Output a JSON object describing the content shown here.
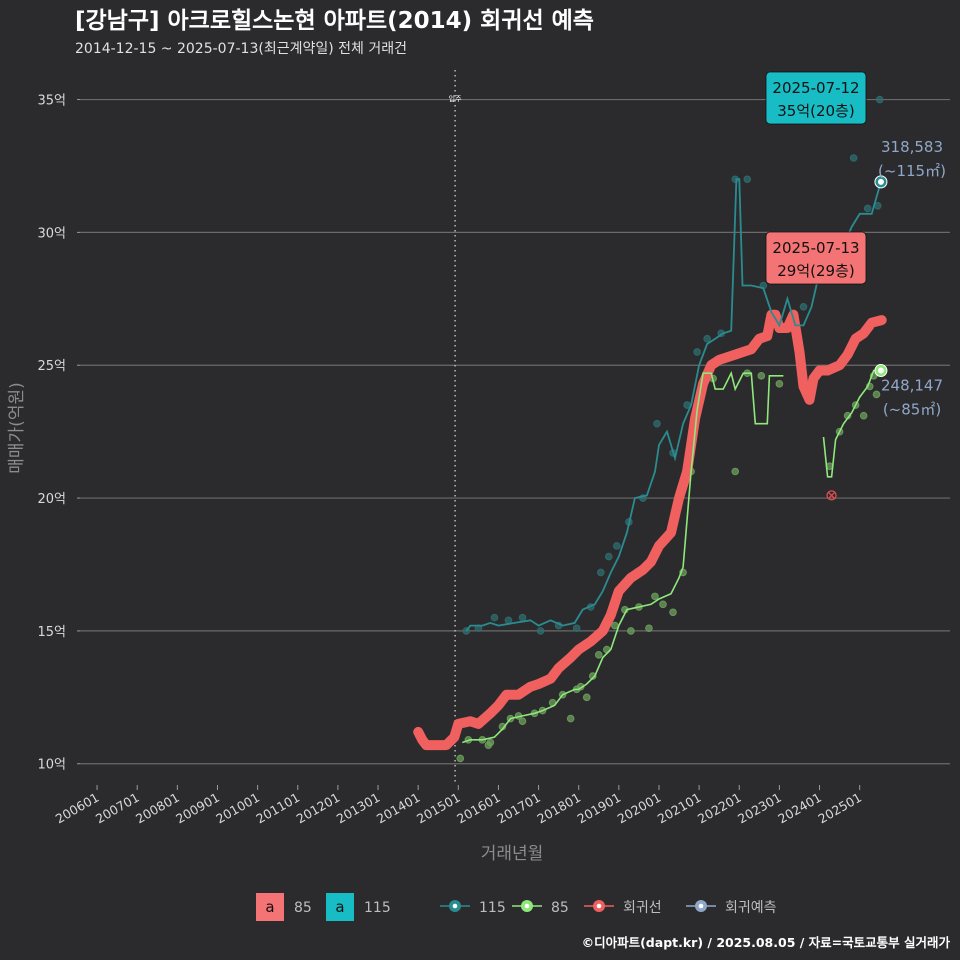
{
  "chart_data": {
    "type": "line",
    "title": "[강남구] 아크로힐스논현 아파트(2014) 회귀선 예측",
    "subtitle": "2014-12-15 ~ 2025-07-13(최근계약일) 전체 거래건",
    "xlabel": "거래년월",
    "ylabel": "매매가(억원)",
    "caption": "©디아파트(dapt.kr) / 2025.08.05 / 자료=국토교통부 실거래가",
    "y_ticks": [
      {
        "v": 10,
        "label": "10억"
      },
      {
        "v": 15,
        "label": "15억"
      },
      {
        "v": 20,
        "label": "20억"
      },
      {
        "v": 25,
        "label": "25억"
      },
      {
        "v": 30,
        "label": "30억"
      },
      {
        "v": 35,
        "label": "35억"
      }
    ],
    "x_ticks": [
      {
        "v": 2006.0,
        "label": "200601"
      },
      {
        "v": 2007.0,
        "label": "200701"
      },
      {
        "v": 2008.0,
        "label": "200801"
      },
      {
        "v": 2009.0,
        "label": "200901"
      },
      {
        "v": 2010.0,
        "label": "201001"
      },
      {
        "v": 2011.0,
        "label": "201101"
      },
      {
        "v": 2012.0,
        "label": "201201"
      },
      {
        "v": 2013.0,
        "label": "201301"
      },
      {
        "v": 2014.0,
        "label": "201401"
      },
      {
        "v": 2015.0,
        "label": "201501"
      },
      {
        "v": 2016.0,
        "label": "201601"
      },
      {
        "v": 2017.0,
        "label": "201701"
      },
      {
        "v": 2018.0,
        "label": "201801"
      },
      {
        "v": 2019.0,
        "label": "201901"
      },
      {
        "v": 2020.0,
        "label": "202001"
      },
      {
        "v": 2021.0,
        "label": "202101"
      },
      {
        "v": 2022.0,
        "label": "202201"
      },
      {
        "v": 2023.0,
        "label": "202301"
      },
      {
        "v": 2024.0,
        "label": "202401"
      },
      {
        "v": 2025.0,
        "label": "202501"
      }
    ],
    "xlim": [
      2005.45,
      2027.5
    ],
    "ylim": [
      9.2,
      36.3
    ],
    "grid": true,
    "move_in_line": {
      "x": 2014.92,
      "label": "입주"
    },
    "colors": {
      "s115": "#2a8c90",
      "s85": "#8fe87a",
      "regression": "#f0605f",
      "prediction": "#8fa7c9",
      "annot115": "#18bcc4",
      "annot85": "#f47374",
      "grid": "#6a6a6a"
    },
    "series": [
      {
        "name": "115",
        "color": "#2a8c90",
        "points": [
          [
            2015.2,
            15.0
          ],
          [
            2015.3,
            15.2
          ],
          [
            2015.6,
            15.2
          ],
          [
            2015.8,
            15.3
          ],
          [
            2016.0,
            15.2
          ],
          [
            2016.4,
            15.3
          ],
          [
            2016.8,
            15.4
          ],
          [
            2017.0,
            15.2
          ],
          [
            2017.3,
            15.4
          ],
          [
            2017.6,
            15.2
          ],
          [
            2017.9,
            15.3
          ],
          [
            2018.1,
            15.8
          ],
          [
            2018.4,
            16.0
          ],
          [
            2018.6,
            16.5
          ],
          [
            2018.8,
            17.2
          ],
          [
            2019.0,
            17.8
          ],
          [
            2019.2,
            18.7
          ],
          [
            2019.4,
            20.0
          ],
          [
            2019.7,
            20.1
          ],
          [
            2019.9,
            21.0
          ],
          [
            2020.0,
            22.0
          ],
          [
            2020.2,
            22.5
          ],
          [
            2020.4,
            21.5
          ],
          [
            2020.6,
            22.8
          ],
          [
            2020.8,
            23.5
          ],
          [
            2021.0,
            25.0
          ],
          [
            2021.2,
            25.8
          ],
          [
            2021.4,
            26.0
          ],
          [
            2021.6,
            26.2
          ],
          [
            2021.8,
            26.3
          ],
          [
            2021.93,
            32.0
          ],
          [
            2022.0,
            32.0
          ],
          [
            2022.08,
            28.0
          ],
          [
            2022.3,
            28.0
          ],
          [
            2022.6,
            27.9
          ],
          [
            2022.8,
            27.0
          ],
          [
            2023.0,
            26.5
          ],
          [
            2023.2,
            27.5
          ],
          [
            2023.4,
            26.5
          ],
          [
            2023.6,
            26.5
          ],
          [
            2023.8,
            27.2
          ],
          [
            2024.0,
            28.5
          ],
          [
            2024.2,
            29.5
          ],
          [
            2024.4,
            29.0
          ],
          [
            2024.6,
            29.5
          ],
          [
            2024.8,
            30.2
          ],
          [
            2025.0,
            30.7
          ],
          [
            2025.3,
            30.7
          ],
          [
            2025.53,
            31.9
          ]
        ]
      },
      {
        "name": "85",
        "color": "#8fe87a",
        "segments": [
          [
            [
              2015.1,
              10.8
            ],
            [
              2015.3,
              10.9
            ],
            [
              2015.6,
              10.9
            ],
            [
              2015.9,
              11.0
            ],
            [
              2016.1,
              11.3
            ],
            [
              2016.3,
              11.7
            ],
            [
              2016.6,
              11.8
            ],
            [
              2016.9,
              11.9
            ],
            [
              2017.1,
              12.0
            ],
            [
              2017.4,
              12.2
            ],
            [
              2017.6,
              12.6
            ],
            [
              2017.9,
              12.8
            ],
            [
              2018.0,
              12.8
            ],
            [
              2018.2,
              13.0
            ],
            [
              2018.4,
              13.3
            ],
            [
              2018.6,
              14.0
            ],
            [
              2018.8,
              14.3
            ],
            [
              2019.0,
              15.2
            ],
            [
              2019.2,
              15.8
            ],
            [
              2019.5,
              15.9
            ],
            [
              2019.8,
              16.0
            ],
            [
              2020.0,
              16.2
            ],
            [
              2020.3,
              16.4
            ],
            [
              2020.5,
              17.0
            ],
            [
              2020.6,
              17.4
            ],
            [
              2020.8,
              21.0
            ],
            [
              2020.95,
              23.3
            ],
            [
              2021.1,
              24.7
            ],
            [
              2021.3,
              24.7
            ],
            [
              2021.4,
              24.1
            ],
            [
              2021.6,
              24.1
            ],
            [
              2021.8,
              24.7
            ],
            [
              2021.9,
              24.1
            ],
            [
              2022.1,
              24.7
            ],
            [
              2022.3,
              24.7
            ],
            [
              2022.4,
              22.8
            ],
            [
              2022.7,
              22.8
            ],
            [
              2022.75,
              24.6
            ],
            [
              2023.0,
              24.6
            ],
            [
              2023.1,
              24.6
            ]
          ],
          [
            [
              2024.1,
              22.3
            ],
            [
              2024.2,
              20.8
            ],
            [
              2024.3,
              20.8
            ],
            [
              2024.4,
              22.2
            ],
            [
              2024.6,
              22.8
            ],
            [
              2024.8,
              23.2
            ],
            [
              2025.0,
              23.8
            ],
            [
              2025.2,
              24.2
            ],
            [
              2025.35,
              24.8
            ],
            [
              2025.53,
              24.8
            ]
          ]
        ]
      },
      {
        "name": "회귀선",
        "color": "#f0605f",
        "points": [
          [
            2014.0,
            11.2
          ],
          [
            2014.1,
            10.9
          ],
          [
            2014.2,
            10.7
          ],
          [
            2014.45,
            10.7
          ],
          [
            2014.7,
            10.7
          ],
          [
            2014.9,
            11.0
          ],
          [
            2015.0,
            11.5
          ],
          [
            2015.3,
            11.6
          ],
          [
            2015.5,
            11.5
          ],
          [
            2015.8,
            11.9
          ],
          [
            2016.0,
            12.2
          ],
          [
            2016.2,
            12.6
          ],
          [
            2016.5,
            12.6
          ],
          [
            2016.8,
            12.9
          ],
          [
            2017.0,
            13.0
          ],
          [
            2017.3,
            13.2
          ],
          [
            2017.5,
            13.6
          ],
          [
            2017.8,
            14.0
          ],
          [
            2018.0,
            14.3
          ],
          [
            2018.3,
            14.6
          ],
          [
            2018.6,
            15.0
          ],
          [
            2018.8,
            15.6
          ],
          [
            2019.0,
            16.5
          ],
          [
            2019.3,
            17.0
          ],
          [
            2019.6,
            17.3
          ],
          [
            2019.8,
            17.6
          ],
          [
            2020.0,
            18.2
          ],
          [
            2020.3,
            18.7
          ],
          [
            2020.5,
            20.0
          ],
          [
            2020.7,
            21.0
          ],
          [
            2020.9,
            23.0
          ],
          [
            2021.1,
            24.3
          ],
          [
            2021.3,
            25.0
          ],
          [
            2021.5,
            25.2
          ],
          [
            2021.7,
            25.3
          ],
          [
            2021.9,
            25.4
          ],
          [
            2022.1,
            25.5
          ],
          [
            2022.3,
            25.6
          ],
          [
            2022.5,
            26.0
          ],
          [
            2022.7,
            26.1
          ],
          [
            2022.8,
            26.9
          ],
          [
            2022.9,
            26.9
          ],
          [
            2023.0,
            26.4
          ],
          [
            2023.2,
            26.4
          ],
          [
            2023.35,
            26.9
          ],
          [
            2023.5,
            25.5
          ],
          [
            2023.6,
            24.2
          ],
          [
            2023.75,
            23.7
          ],
          [
            2023.85,
            24.5
          ],
          [
            2024.0,
            24.8
          ],
          [
            2024.2,
            24.8
          ],
          [
            2024.5,
            25.0
          ],
          [
            2024.7,
            25.4
          ],
          [
            2024.9,
            26.0
          ],
          [
            2025.1,
            26.2
          ],
          [
            2025.3,
            26.6
          ],
          [
            2025.55,
            26.7
          ]
        ]
      }
    ],
    "scatter": {
      "color85": "#6e9f5c",
      "color115": "#2f6d6f",
      "points": [
        [
          2015.05,
          10.2,
          "85"
        ],
        [
          2015.25,
          10.9,
          "85"
        ],
        [
          2015.6,
          10.9,
          "85"
        ],
        [
          2015.75,
          10.7,
          "85"
        ],
        [
          2015.8,
          10.8,
          "85"
        ],
        [
          2016.1,
          11.4,
          "85"
        ],
        [
          2016.3,
          11.7,
          "85"
        ],
        [
          2016.5,
          11.8,
          "85"
        ],
        [
          2016.6,
          11.6,
          "85"
        ],
        [
          2016.9,
          11.9,
          "85"
        ],
        [
          2017.1,
          12.0,
          "85"
        ],
        [
          2017.35,
          12.3,
          "85"
        ],
        [
          2017.6,
          12.6,
          "85"
        ],
        [
          2017.8,
          11.7,
          "85"
        ],
        [
          2017.95,
          12.8,
          "85"
        ],
        [
          2018.05,
          12.9,
          "85"
        ],
        [
          2018.2,
          12.5,
          "85"
        ],
        [
          2018.35,
          13.3,
          "85"
        ],
        [
          2018.5,
          14.1,
          "85"
        ],
        [
          2018.7,
          14.3,
          "85"
        ],
        [
          2018.9,
          15.2,
          "85"
        ],
        [
          2019.15,
          15.8,
          "85"
        ],
        [
          2019.3,
          15.0,
          "85"
        ],
        [
          2019.5,
          15.9,
          "85"
        ],
        [
          2019.75,
          15.1,
          "85"
        ],
        [
          2019.9,
          16.3,
          "85"
        ],
        [
          2020.1,
          16.0,
          "85"
        ],
        [
          2020.35,
          15.7,
          "85"
        ],
        [
          2020.6,
          17.2,
          "85"
        ],
        [
          2020.8,
          21.0,
          "85"
        ],
        [
          2021.35,
          24.5,
          "85"
        ],
        [
          2021.9,
          21.0,
          "85"
        ],
        [
          2022.2,
          24.7,
          "85"
        ],
        [
          2022.55,
          24.6,
          "85"
        ],
        [
          2023.0,
          24.3,
          "85"
        ],
        [
          2024.25,
          21.2,
          "85"
        ],
        [
          2024.5,
          22.5,
          "85"
        ],
        [
          2024.7,
          23.1,
          "85"
        ],
        [
          2024.9,
          23.5,
          "85"
        ],
        [
          2025.1,
          23.1,
          "85"
        ],
        [
          2025.25,
          24.2,
          "85"
        ],
        [
          2025.35,
          24.6,
          "85"
        ],
        [
          2025.42,
          23.9,
          "85"
        ],
        [
          2025.5,
          24.9,
          "85"
        ],
        [
          2015.2,
          15.0,
          "115"
        ],
        [
          2015.5,
          15.1,
          "115"
        ],
        [
          2015.9,
          15.5,
          "115"
        ],
        [
          2016.25,
          15.4,
          "115"
        ],
        [
          2016.6,
          15.5,
          "115"
        ],
        [
          2017.05,
          15.0,
          "115"
        ],
        [
          2017.5,
          15.2,
          "115"
        ],
        [
          2017.95,
          15.1,
          "115"
        ],
        [
          2018.3,
          15.9,
          "115"
        ],
        [
          2018.55,
          17.2,
          "115"
        ],
        [
          2018.75,
          17.8,
          "115"
        ],
        [
          2018.95,
          18.2,
          "115"
        ],
        [
          2019.25,
          19.1,
          "115"
        ],
        [
          2019.6,
          20.0,
          "115"
        ],
        [
          2019.95,
          22.8,
          "115"
        ],
        [
          2020.35,
          21.7,
          "115"
        ],
        [
          2020.7,
          23.5,
          "115"
        ],
        [
          2020.95,
          25.5,
          "115"
        ],
        [
          2021.2,
          26.0,
          "115"
        ],
        [
          2021.55,
          26.2,
          "115"
        ],
        [
          2021.9,
          32.0,
          "115"
        ],
        [
          2022.2,
          32.0,
          "115"
        ],
        [
          2022.6,
          28.0,
          "115"
        ],
        [
          2023.1,
          26.4,
          "115"
        ],
        [
          2023.6,
          27.2,
          "115"
        ],
        [
          2024.25,
          29.0,
          "115"
        ],
        [
          2024.55,
          29.6,
          "115"
        ],
        [
          2024.85,
          32.8,
          "115"
        ],
        [
          2025.2,
          30.9,
          "115"
        ],
        [
          2025.45,
          31.0,
          "115"
        ],
        [
          2025.5,
          35.0,
          "115"
        ]
      ]
    },
    "outlier": {
      "x": 2024.3,
      "y": 20.1
    },
    "end_points": [
      {
        "series": "115",
        "x": 2025.53,
        "y": 31.9,
        "color": "#2a8c90",
        "label": "318,583",
        "sublabel": "(~115㎡)"
      },
      {
        "series": "85",
        "x": 2025.53,
        "y": 24.8,
        "color": "#8fe87a",
        "label": "248,147",
        "sublabel": "(~85㎡)"
      }
    ],
    "annotations": [
      {
        "series": "115",
        "date": "2025-07-12",
        "text": "35억(20층)",
        "color": "#18bcc4",
        "x": 2025.0,
        "y": 35.0
      },
      {
        "series": "85",
        "date": "2025-07-13",
        "text": "29억(29층)",
        "color": "#f47374",
        "x": 2025.0,
        "y": 29.0
      }
    ],
    "legend": {
      "boxes": [
        {
          "glyph": "a",
          "label": "85",
          "color": "#f47374"
        },
        {
          "glyph": "a",
          "label": "115",
          "color": "#18bcc4"
        }
      ],
      "lines": [
        {
          "label": "115",
          "color": "#2a8c90"
        },
        {
          "label": "85",
          "color": "#8fe87a"
        },
        {
          "label": "회귀선",
          "color": "#f0605f"
        },
        {
          "label": "회귀예측",
          "color": "#8fa7c9"
        }
      ]
    }
  }
}
